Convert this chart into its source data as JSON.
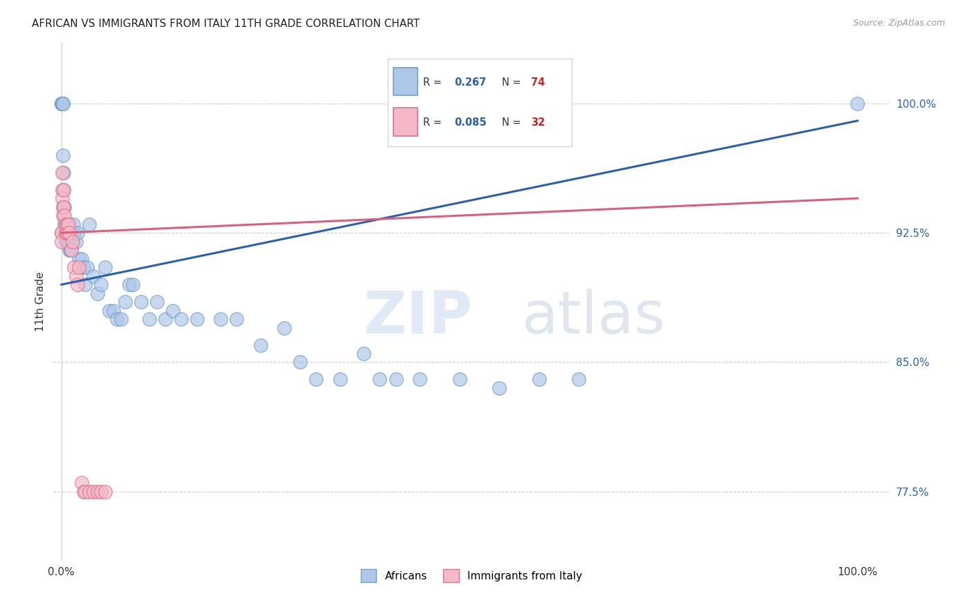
{
  "title": "AFRICAN VS IMMIGRANTS FROM ITALY 11TH GRADE CORRELATION CHART",
  "source": "Source: ZipAtlas.com",
  "ylabel": "11th Grade",
  "blue_color": "#aec6e8",
  "blue_edge": "#6fa0cc",
  "pink_color": "#f4b8c8",
  "pink_edge": "#d9748a",
  "blue_line_color": "#2b5fad",
  "pink_line_color": "#d9607a",
  "legend_R_color": "#2b5fad",
  "legend_N_color": "#cc2222",
  "grid_color": "#cccccc",
  "bg_color": "#ffffff",
  "right_label_color": "#2b5fad",
  "africans_x": [
    0.0,
    0.0,
    0.0,
    0.001,
    0.001,
    0.001,
    0.001,
    0.002,
    0.002,
    0.002,
    0.003,
    0.003,
    0.003,
    0.004,
    0.004,
    0.005,
    0.005,
    0.006,
    0.006,
    0.007,
    0.007,
    0.008,
    0.008,
    0.009,
    0.009,
    0.01,
    0.01,
    0.011,
    0.012,
    0.013,
    0.015,
    0.016,
    0.018,
    0.02,
    0.022,
    0.025,
    0.028,
    0.03,
    0.032,
    0.035,
    0.04,
    0.045,
    0.05,
    0.055,
    0.06,
    0.065,
    0.07,
    0.075,
    0.08,
    0.085,
    0.09,
    0.1,
    0.11,
    0.12,
    0.13,
    0.14,
    0.15,
    0.17,
    0.2,
    0.22,
    0.25,
    0.28,
    0.3,
    0.32,
    0.35,
    0.38,
    0.4,
    0.42,
    0.45,
    0.5,
    0.55,
    0.6,
    0.65,
    1.0
  ],
  "africans_y": [
    1.0,
    1.0,
    1.0,
    1.0,
    1.0,
    1.0,
    1.0,
    1.0,
    1.0,
    0.97,
    0.96,
    0.95,
    0.94,
    0.94,
    0.93,
    0.93,
    0.92,
    0.93,
    0.92,
    0.93,
    0.925,
    0.925,
    0.92,
    0.925,
    0.92,
    0.925,
    0.915,
    0.915,
    0.915,
    0.92,
    0.93,
    0.925,
    0.92,
    0.925,
    0.91,
    0.91,
    0.905,
    0.895,
    0.905,
    0.93,
    0.9,
    0.89,
    0.895,
    0.905,
    0.88,
    0.88,
    0.875,
    0.875,
    0.885,
    0.895,
    0.895,
    0.885,
    0.875,
    0.885,
    0.875,
    0.88,
    0.875,
    0.875,
    0.875,
    0.875,
    0.86,
    0.87,
    0.85,
    0.84,
    0.84,
    0.855,
    0.84,
    0.84,
    0.84,
    0.84,
    0.835,
    0.84,
    0.84,
    1.0
  ],
  "italy_x": [
    0.0,
    0.0,
    0.0,
    0.001,
    0.001,
    0.001,
    0.002,
    0.002,
    0.003,
    0.003,
    0.004,
    0.005,
    0.005,
    0.006,
    0.007,
    0.008,
    0.009,
    0.01,
    0.012,
    0.014,
    0.016,
    0.018,
    0.02,
    0.022,
    0.025,
    0.028,
    0.03,
    0.035,
    0.04,
    0.045,
    0.05,
    0.055
  ],
  "italy_y": [
    0.925,
    0.925,
    0.92,
    0.96,
    0.95,
    0.945,
    0.94,
    0.935,
    0.95,
    0.94,
    0.935,
    0.93,
    0.925,
    0.925,
    0.93,
    0.925,
    0.93,
    0.925,
    0.915,
    0.92,
    0.905,
    0.9,
    0.895,
    0.905,
    0.78,
    0.775,
    0.775,
    0.775,
    0.775,
    0.775,
    0.775,
    0.775
  ],
  "ylim": [
    0.735,
    1.035
  ],
  "xlim": [
    -0.01,
    1.04
  ],
  "yticks": [
    0.775,
    0.85,
    0.925,
    1.0
  ],
  "ytick_labels": [
    "77.5%",
    "85.0%",
    "92.5%",
    "100.0%"
  ],
  "xtick_labels_left": "0.0%",
  "xtick_labels_right": "100.0%",
  "blue_line_x0": 0.0,
  "blue_line_x1": 1.0,
  "blue_line_y0": 0.895,
  "blue_line_y1": 0.99,
  "pink_line_x0": 0.0,
  "pink_line_x1": 1.0,
  "pink_line_y0": 0.925,
  "pink_line_y1": 0.945
}
